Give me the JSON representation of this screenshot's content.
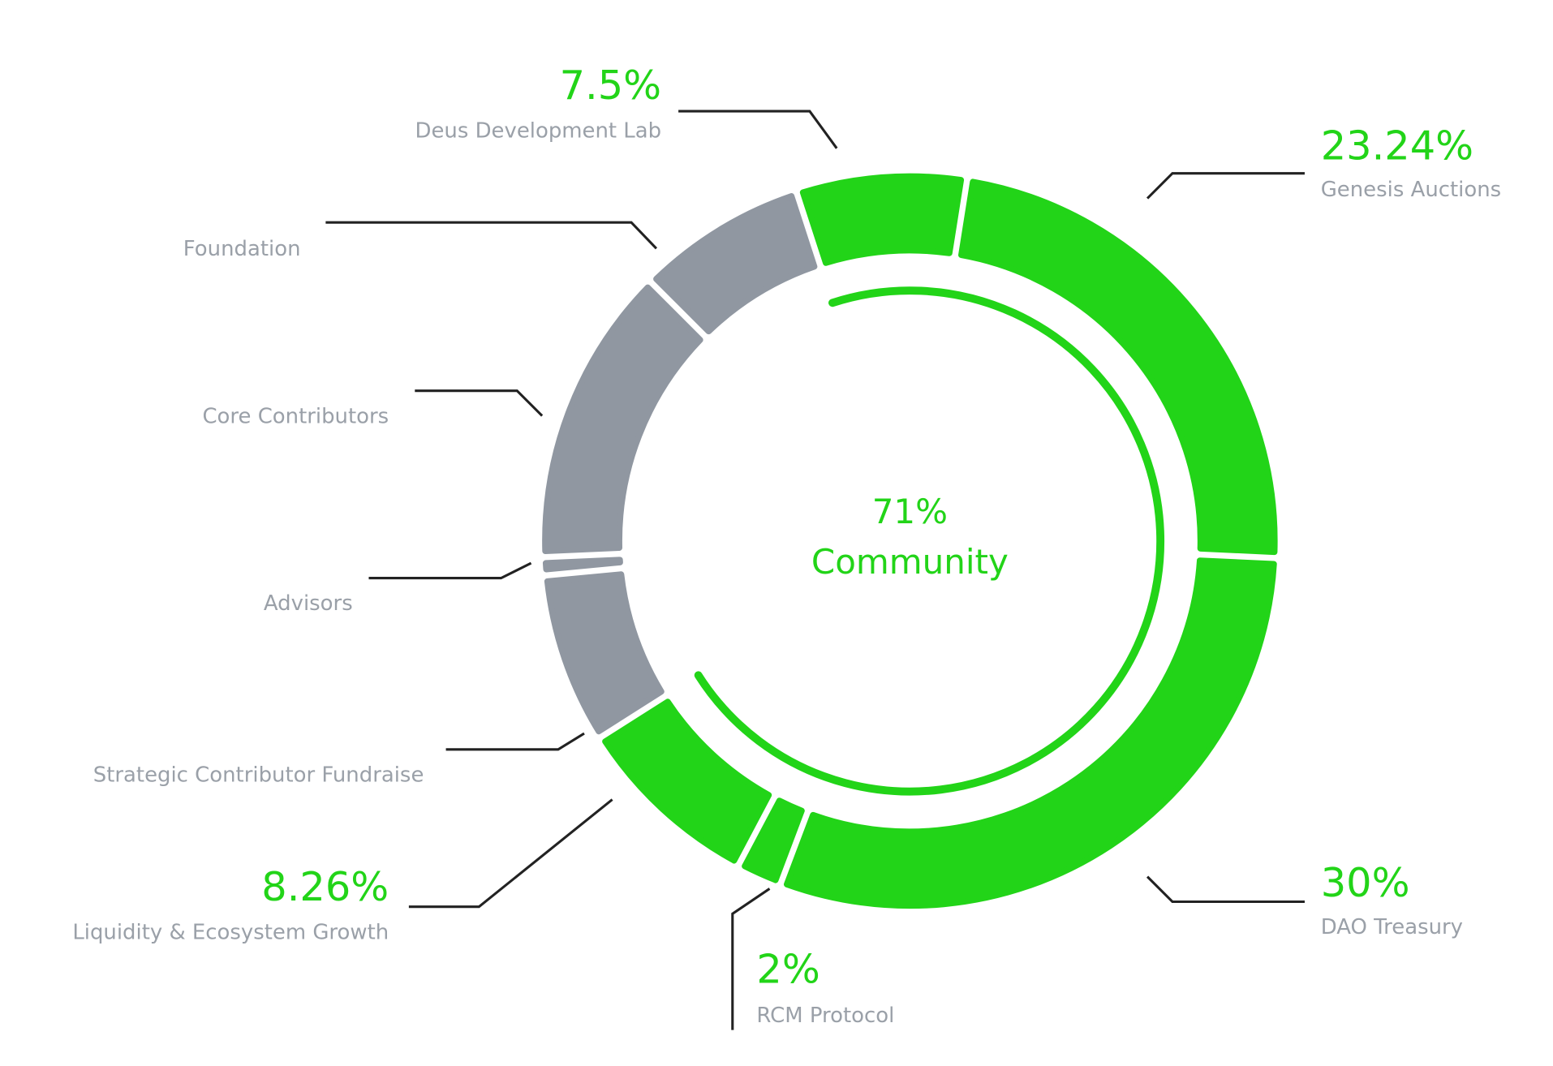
{
  "chart_data": {
    "type": "pie",
    "categories": [
      "Deus Development Lab",
      "Genesis Auctions",
      "DAO Treasury",
      "RCM Protocol",
      "Liquidity & Ecosystem Growth",
      "Strategic Contributor Fundraise",
      "Advisors",
      "Core Contributors",
      "Foundation"
    ],
    "values": [
      7.5,
      23.24,
      30,
      2,
      8.26,
      7.5,
      0.8,
      13.2,
      7.5
    ],
    "value_labels": [
      "7.5%",
      "23.24%",
      "30%",
      "2%",
      "8.26%",
      null,
      null,
      null,
      null
    ],
    "colors": [
      "#22d418",
      "#22d418",
      "#22d418",
      "#22d418",
      "#22d418",
      "#9097a1",
      "#9097a1",
      "#9097a1",
      "#9097a1"
    ],
    "total": {
      "value": 71,
      "value_label": "71%",
      "name": "Community",
      "color": "#22d418"
    }
  }
}
